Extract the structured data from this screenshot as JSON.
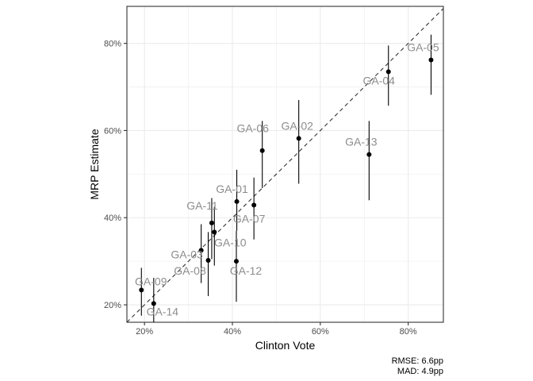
{
  "chart_data": {
    "type": "scatter",
    "xlabel": "Clinton Vote",
    "ylabel": "MRP Estimate",
    "xlim": [
      0.16,
      0.88
    ],
    "ylim": [
      0.16,
      0.885
    ],
    "x_ticks": [
      {
        "value": 0.2,
        "label": "20%"
      },
      {
        "value": 0.4,
        "label": "40%"
      },
      {
        "value": 0.6,
        "label": "60%"
      },
      {
        "value": 0.8,
        "label": "80%"
      }
    ],
    "y_ticks": [
      {
        "value": 0.2,
        "label": "20%"
      },
      {
        "value": 0.4,
        "label": "40%"
      },
      {
        "value": 0.6,
        "label": "60%"
      },
      {
        "value": 0.8,
        "label": "80%"
      }
    ],
    "reference_line": "y = x (dashed)",
    "grid": true,
    "caption": [
      "RMSE: 6.6pp",
      "MAD: 4.9pp"
    ],
    "points": [
      {
        "label": "GA-01",
        "x": 0.41,
        "y": 0.437,
        "lo": 0.37,
        "hi": 0.51
      },
      {
        "label": "GA-02",
        "x": 0.551,
        "y": 0.582,
        "lo": 0.478,
        "hi": 0.67
      },
      {
        "label": "GA-03",
        "x": 0.329,
        "y": 0.325,
        "lo": 0.25,
        "hi": 0.385
      },
      {
        "label": "GA-04",
        "x": 0.755,
        "y": 0.735,
        "lo": 0.657,
        "hi": 0.795
      },
      {
        "label": "GA-05",
        "x": 0.852,
        "y": 0.762,
        "lo": 0.682,
        "hi": 0.82
      },
      {
        "label": "GA-06",
        "x": 0.468,
        "y": 0.554,
        "lo": 0.468,
        "hi": 0.622
      },
      {
        "label": "GA-07",
        "x": 0.449,
        "y": 0.429,
        "lo": 0.35,
        "hi": 0.492
      },
      {
        "label": "GA-08",
        "x": 0.345,
        "y": 0.302,
        "lo": 0.22,
        "hi": 0.367
      },
      {
        "label": "GA-09",
        "x": 0.193,
        "y": 0.234,
        "lo": 0.175,
        "hi": 0.285
      },
      {
        "label": "GA-10",
        "x": 0.359,
        "y": 0.367,
        "lo": 0.29,
        "hi": 0.425
      },
      {
        "label": "GA-11",
        "x": 0.353,
        "y": 0.388,
        "lo": 0.305,
        "hi": 0.445
      },
      {
        "label": "GA-12",
        "x": 0.409,
        "y": 0.3,
        "lo": 0.207,
        "hi": 0.37
      },
      {
        "label": "GA-13",
        "x": 0.711,
        "y": 0.545,
        "lo": 0.44,
        "hi": 0.622
      },
      {
        "label": "GA-14",
        "x": 0.221,
        "y": 0.203,
        "lo": 0.16,
        "hi": 0.262
      }
    ]
  }
}
